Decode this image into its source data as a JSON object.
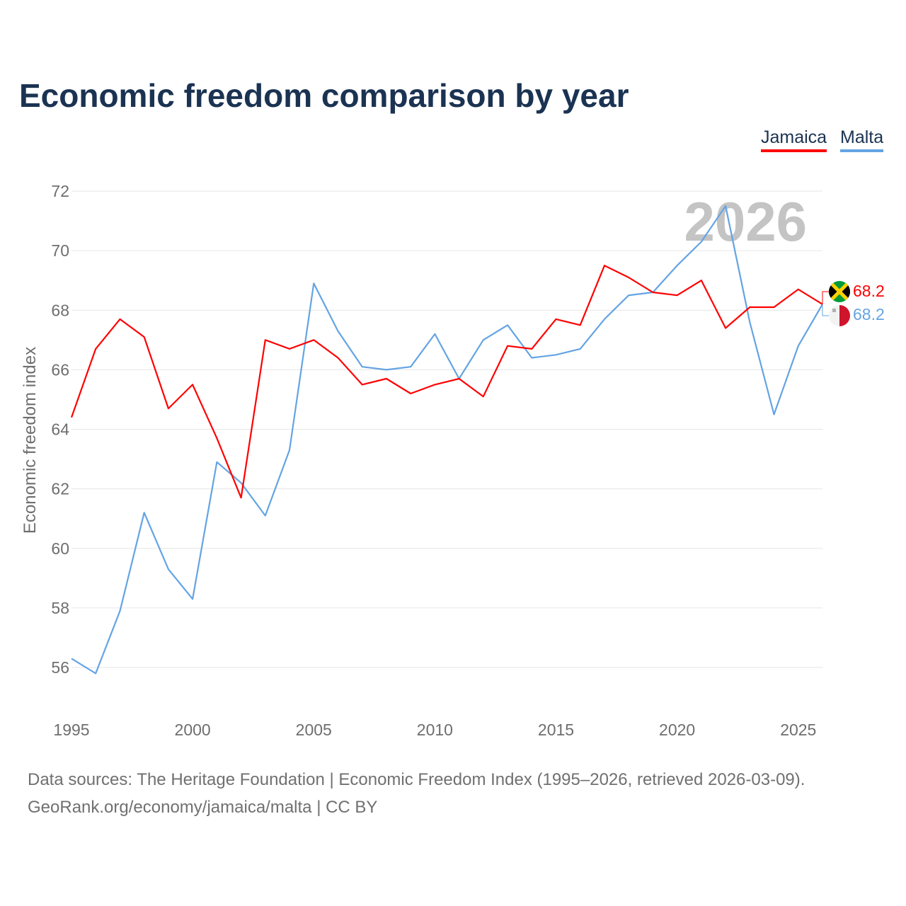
{
  "title": "Economic freedom comparison by year",
  "legend": [
    {
      "label": "Jamaica",
      "color": "#ff0000"
    },
    {
      "label": "Malta",
      "color": "#63a4e3"
    }
  ],
  "watermark_year": "2026",
  "end_labels": {
    "jamaica": "68.2",
    "malta": "68.2"
  },
  "flag_icons": {
    "jamaica": "jamaica-flag-icon",
    "malta": "malta-flag-icon"
  },
  "source": {
    "line1": "Data sources: The Heritage Foundation | Economic Freedom Index (1995–2026, retrieved 2026-03-09).",
    "line2": "GeoRank.org/economy/jamaica/malta | CC BY"
  },
  "chart_data": {
    "type": "line",
    "title": "Economic freedom comparison by year",
    "xlabel": "",
    "ylabel": "Economic freedom index",
    "xlim": [
      1995,
      2026
    ],
    "ylim": [
      55,
      72
    ],
    "x_ticks": [
      1995,
      2000,
      2005,
      2010,
      2015,
      2020,
      2025
    ],
    "y_ticks": [
      56,
      58,
      60,
      62,
      64,
      66,
      68,
      70,
      72
    ],
    "grid": true,
    "legend_position": "top-right",
    "x": [
      1995,
      1996,
      1997,
      1998,
      1999,
      2000,
      2001,
      2002,
      2003,
      2004,
      2005,
      2006,
      2007,
      2008,
      2009,
      2010,
      2011,
      2012,
      2013,
      2014,
      2015,
      2016,
      2017,
      2018,
      2019,
      2020,
      2021,
      2022,
      2023,
      2024,
      2025,
      2026
    ],
    "series": [
      {
        "name": "Jamaica",
        "color": "#ff0000",
        "values": [
          64.4,
          66.7,
          67.7,
          67.1,
          64.7,
          65.5,
          63.7,
          61.7,
          67.0,
          66.7,
          67.0,
          66.4,
          65.5,
          65.7,
          65.2,
          65.5,
          65.7,
          65.1,
          66.8,
          66.7,
          67.7,
          67.5,
          69.5,
          69.1,
          68.6,
          68.5,
          69.0,
          67.4,
          68.1,
          68.1,
          68.7,
          68.2
        ]
      },
      {
        "name": "Malta",
        "color": "#63a4e3",
        "values": [
          56.3,
          55.8,
          57.9,
          61.2,
          59.3,
          58.3,
          62.9,
          62.2,
          61.1,
          63.3,
          68.9,
          67.3,
          66.1,
          66.0,
          66.1,
          67.2,
          65.7,
          67.0,
          67.5,
          66.4,
          66.5,
          66.7,
          67.7,
          68.5,
          68.6,
          69.5,
          70.3,
          71.5,
          67.6,
          64.5,
          66.8,
          68.2
        ]
      }
    ]
  }
}
